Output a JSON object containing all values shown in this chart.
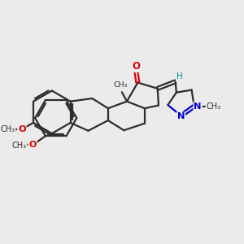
{
  "bg_color": "#ebebeb",
  "bond_color": "#2d2d2d",
  "oxygen_color": "#dd0000",
  "nitrogen_color": "#0000cc",
  "hydrogen_color": "#008888",
  "lw": 1.6,
  "figsize": [
    3.0,
    3.0
  ],
  "dpi": 100,
  "xlim": [
    0,
    12
  ],
  "ylim": [
    0,
    10
  ]
}
